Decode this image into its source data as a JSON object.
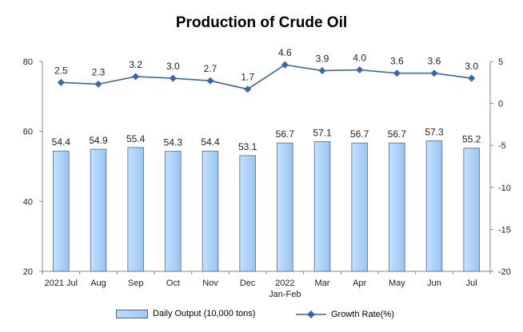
{
  "chart_data": {
    "type": "bar+line",
    "title": "Production of Crude Oil",
    "categories": [
      "2021 Jul",
      "Aug",
      "Sep",
      "Oct",
      "Nov",
      "Dec",
      "2022\nJan-Feb",
      "Mar",
      "Apr",
      "May",
      "Jun",
      "Jul"
    ],
    "series": [
      {
        "name": "Daily Output (10,000 tons)",
        "type": "bar",
        "axis": "left",
        "values": [
          54.4,
          54.9,
          55.4,
          54.3,
          54.4,
          53.1,
          56.7,
          57.1,
          56.7,
          56.7,
          57.3,
          55.2
        ]
      },
      {
        "name": "Growth Rate(%)",
        "type": "line",
        "axis": "right",
        "values": [
          2.5,
          2.3,
          3.2,
          3.0,
          2.7,
          1.7,
          4.6,
          3.9,
          4.0,
          3.6,
          3.6,
          3.0
        ]
      }
    ],
    "y_left": {
      "min": 20,
      "max": 80,
      "ticks": [
        20,
        40,
        60,
        80
      ]
    },
    "y_right": {
      "min": -20,
      "max": 5,
      "ticks": [
        5,
        0,
        -5,
        -10,
        -15,
        -20
      ]
    },
    "legend_position": "bottom",
    "grid": false
  },
  "colors": {
    "bar_fill_light": "#bfdcfb",
    "bar_fill_dark": "#9ccaf6",
    "bar_stroke": "#4a6a8a",
    "line": "#3a67a8",
    "axis": "#888888"
  }
}
